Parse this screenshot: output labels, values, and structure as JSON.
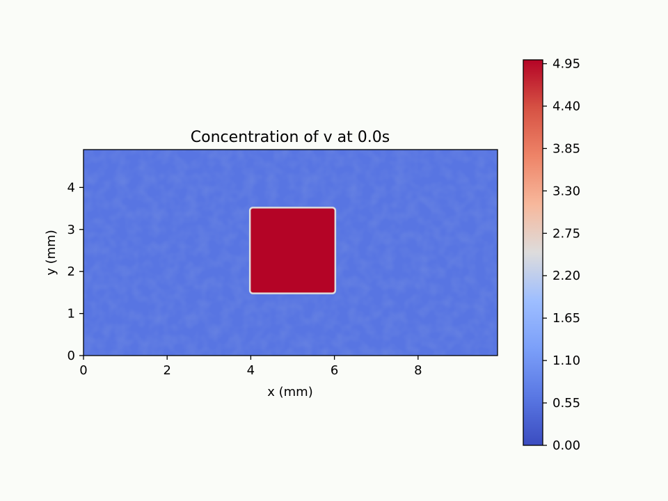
{
  "chart_data": [
    {
      "type": "heatmap",
      "title": "Concentration of v at 0.0s",
      "xlabel": "x (mm)",
      "ylabel": "y (mm)",
      "xlim": [
        0,
        9.9
      ],
      "ylim": [
        0,
        4.9
      ],
      "xticks": [
        0,
        2,
        4,
        6,
        8
      ],
      "yticks": [
        0,
        1,
        2,
        3,
        4
      ],
      "background_value": 0.6,
      "regions": [
        {
          "x": [
            4.0,
            6.0
          ],
          "y": [
            1.5,
            3.5
          ],
          "value": 5.0
        }
      ],
      "colormap": "coolwarm",
      "grid": false
    },
    {
      "type": "colorbar",
      "range": [
        0,
        5.0
      ],
      "ticks": [
        "0.00",
        "0.55",
        "1.10",
        "1.65",
        "2.20",
        "2.75",
        "3.30",
        "3.85",
        "4.40",
        "4.95"
      ]
    }
  ]
}
